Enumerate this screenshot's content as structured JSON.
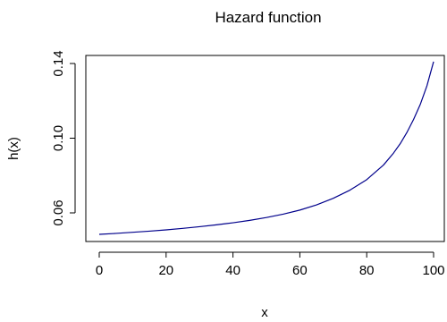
{
  "chart_data": {
    "type": "line",
    "title": "Hazard function",
    "xlabel": "x",
    "ylabel": "h(x)",
    "xlim": [
      0,
      100
    ],
    "ylim": [
      0.045,
      0.14
    ],
    "x_ticks": [
      0,
      20,
      40,
      60,
      80,
      100
    ],
    "x_tick_labels": [
      "0",
      "20",
      "40",
      "60",
      "80",
      "100"
    ],
    "y_ticks": [
      0.06,
      0.1,
      0.14
    ],
    "y_tick_labels": [
      "0.06",
      "0.10",
      "0.14"
    ],
    "grid": false,
    "series": [
      {
        "color": "#00008b",
        "x": [
          0,
          5,
          10,
          15,
          20,
          25,
          30,
          35,
          40,
          45,
          50,
          55,
          60,
          65,
          70,
          75,
          80,
          85,
          88,
          90,
          92,
          94,
          96,
          98,
          100
        ],
        "y": [
          0.0485,
          0.049,
          0.0496,
          0.0502,
          0.0509,
          0.0517,
          0.0526,
          0.0536,
          0.0547,
          0.056,
          0.0575,
          0.0593,
          0.0615,
          0.0643,
          0.0678,
          0.0722,
          0.0778,
          0.0856,
          0.092,
          0.097,
          0.103,
          0.11,
          0.118,
          0.128,
          0.141
        ]
      }
    ]
  }
}
